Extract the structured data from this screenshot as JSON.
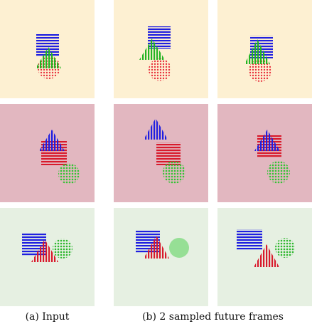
{
  "figure": {
    "rows": [
      {
        "background": "#FDF0D2",
        "frames": [
          {
            "square": true,
            "triangle": true,
            "circle": true
          },
          {
            "square": true,
            "triangle": true,
            "circle": true
          },
          {
            "square": true,
            "triangle": true,
            "circle": true
          }
        ]
      },
      {
        "background": "#E2B7C0",
        "frames": [
          {
            "square": true,
            "triangle": true,
            "circle": true
          },
          {
            "square": true,
            "triangle": true,
            "circle": true
          },
          {
            "square": true,
            "triangle": true,
            "circle": true
          }
        ]
      },
      {
        "background": "#E6F0E2",
        "frames": [
          {
            "square": true,
            "triangle": true,
            "circle": true
          },
          {
            "square": true,
            "triangle": true,
            "circle": true
          },
          {
            "square": true,
            "triangle": true,
            "circle": true
          }
        ]
      }
    ],
    "shape_colors": {
      "blue": "#1F1FE0",
      "green": "#22B422",
      "red": "#D81A2C",
      "light_green": "#58D458",
      "light_red": "#F27A80"
    },
    "captions": {
      "input": "(a) Input",
      "future": "(b) 2 sampled future frames"
    }
  }
}
